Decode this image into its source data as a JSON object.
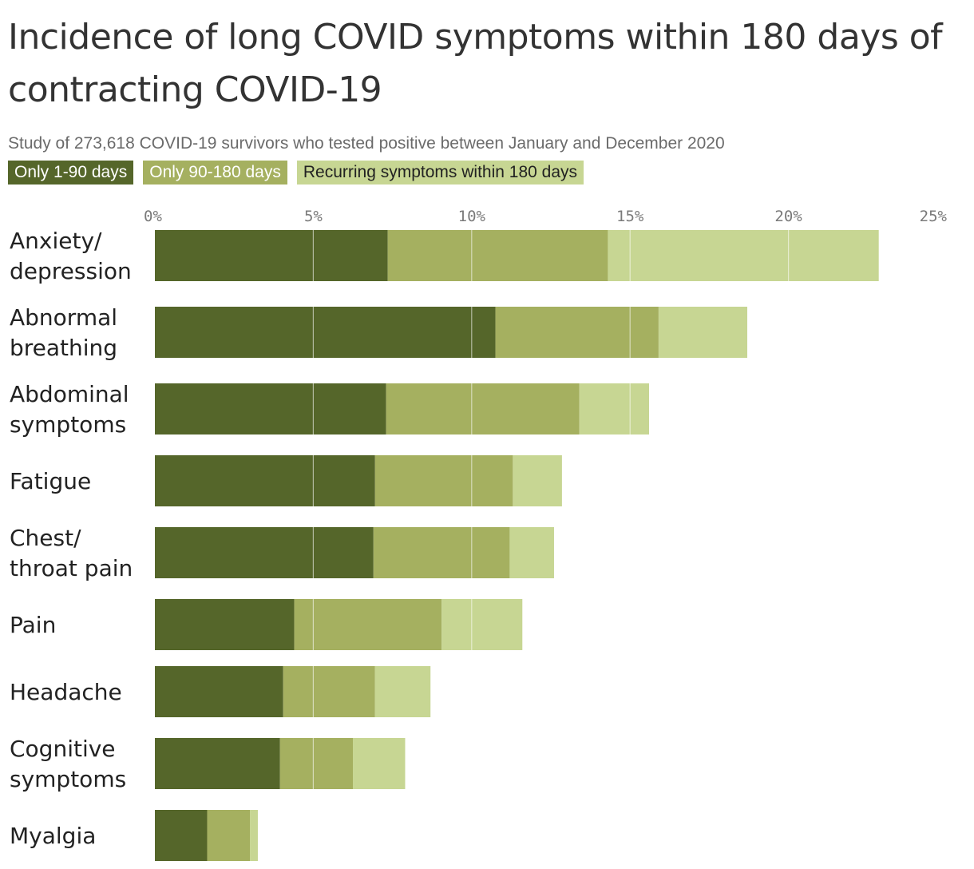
{
  "title": "Incidence of long COVID symptoms within 180 days of contracting COVID-19",
  "subtitle": "Study of 273,618 COVID-19 survivors who tested positive between January and December 2020",
  "colors": {
    "series1": "#55662a",
    "series2": "#a5b060",
    "series3": "#c7d693",
    "gridline": "#ffffff",
    "tick_text": "#7a7a7a"
  },
  "legend": [
    {
      "label": "Only 1-90 days",
      "color": "#55662a",
      "text_color": "#ffffff"
    },
    {
      "label": "Only 90-180 days",
      "color": "#a5b060",
      "text_color": "#ffffff"
    },
    {
      "label": "Recurring symptoms within 180 days",
      "color": "#c7d693",
      "text_color": "#222222"
    }
  ],
  "chart_data": {
    "type": "bar",
    "orientation": "horizontal",
    "stacked": true,
    "categories": [
      [
        "Anxiety/",
        "depression"
      ],
      [
        "Abnormal",
        "breathing"
      ],
      [
        "Abdominal",
        "symptoms"
      ],
      [
        "Fatigue"
      ],
      [
        "Chest/",
        "throat pain"
      ],
      [
        "Pain"
      ],
      [
        "Headache"
      ],
      [
        "Cognitive",
        "symptoms"
      ],
      [
        "Myalgia"
      ]
    ],
    "series": [
      {
        "name": "Only 1-90 days",
        "values": [
          7.35,
          10.75,
          7.3,
          6.95,
          6.9,
          4.4,
          4.05,
          3.95,
          1.65
        ]
      },
      {
        "name": "Only 90-180 days",
        "values": [
          6.95,
          5.15,
          6.1,
          4.35,
          4.3,
          4.65,
          2.9,
          2.3,
          1.35
        ]
      },
      {
        "name": "Recurring symptoms within 180 days",
        "values": [
          8.55,
          2.8,
          2.2,
          1.55,
          1.4,
          2.55,
          1.75,
          1.65,
          0.25
        ]
      }
    ],
    "xlim": [
      0,
      25
    ],
    "xticks": [
      0,
      5,
      10,
      15,
      20,
      25
    ],
    "xtick_labels": [
      "0%",
      "5%",
      "10%",
      "15%",
      "20%",
      "25%"
    ],
    "xlabel": "",
    "ylabel": "",
    "grid": true,
    "axis_position": "top"
  }
}
